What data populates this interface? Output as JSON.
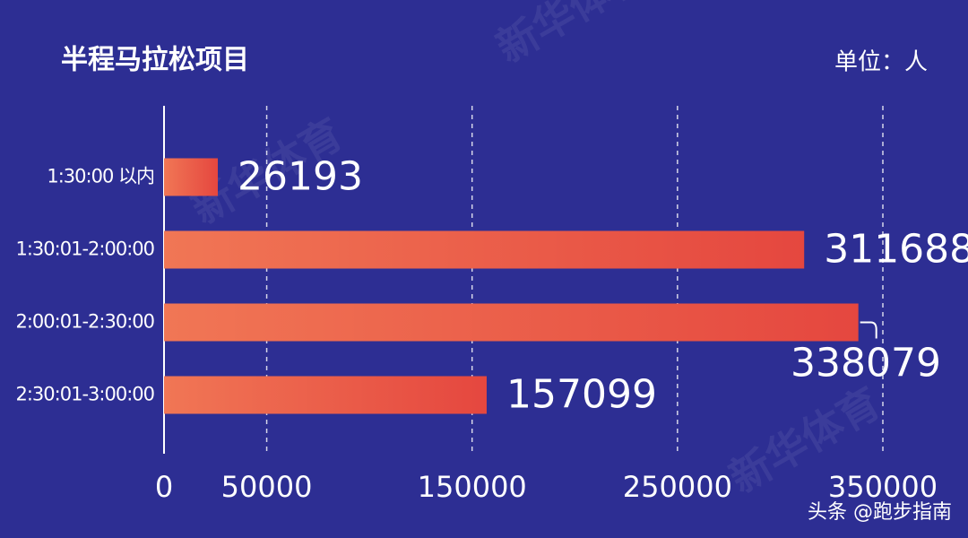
{
  "chart_data": {
    "type": "bar",
    "orientation": "horizontal",
    "title": "半程马拉松项目",
    "unit": "单位：人",
    "categories": [
      "1:30:00 以内",
      "1:30:01-2:00:00",
      "2:00:01-2:30:00",
      "2:30:01-3:00:00"
    ],
    "values": [
      26193,
      311688,
      338079,
      157099
    ],
    "color": "#e5473f",
    "xlim": [
      0,
      350000
    ],
    "xticks": [
      0,
      50000,
      150000,
      250000,
      350000
    ],
    "grid": true,
    "watermarks": [
      "新华体育",
      "头条 @跑步指南"
    ]
  }
}
